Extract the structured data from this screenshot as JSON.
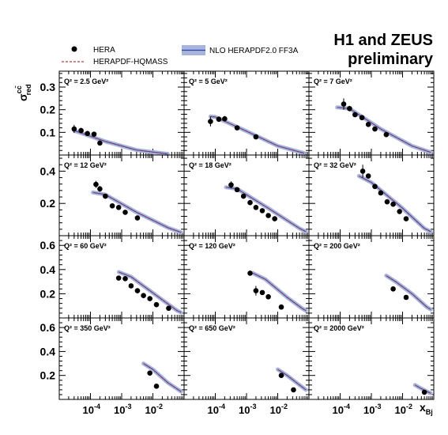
{
  "header": {
    "title_line1": "H1 and ZEUS",
    "title_line2": "preliminary"
  },
  "legend": {
    "data_label": "HERA",
    "theory1_label": "HERAPDF-HQMASS",
    "theory2_label": "NLO HERAPDF2.0 FF3A"
  },
  "axes": {
    "ylabel": "σ",
    "ylabel_sup": "cc̄",
    "ylabel_sub": "red",
    "xlabel": "x",
    "xlabel_sub": "Bj"
  },
  "colors": {
    "data_marker": "#000000",
    "band_fill": "#a7b4dc",
    "band_line": "#3340a8",
    "dashed_line": "#b04040"
  },
  "chart_data": {
    "type": "scatter",
    "x_scale": "log",
    "x_range": [
      1e-05,
      0.1
    ],
    "x_tick_labels": [
      "10^-4",
      "10^-3",
      "10^-2"
    ],
    "rows": [
      {
        "ylim": [
          0,
          0.37
        ],
        "yticks": [
          0.1,
          0.2,
          0.3
        ]
      },
      {
        "ylim": [
          0,
          0.5
        ],
        "yticks": [
          0.2,
          0.4
        ]
      },
      {
        "ylim": [
          0,
          0.68
        ],
        "yticks": [
          0.2,
          0.4,
          0.6
        ]
      },
      {
        "ylim": [
          0,
          0.68
        ],
        "yticks": [
          0.2,
          0.4,
          0.6
        ]
      }
    ],
    "panels": [
      {
        "label": "Q² = 2.5 GeV²",
        "points": [
          [
            3e-05,
            0.115,
            0.018
          ],
          [
            5e-05,
            0.108,
            0.012
          ],
          [
            8e-05,
            0.095,
            0.01
          ],
          [
            0.00013,
            0.092,
            0.01
          ],
          [
            0.0002,
            0.053,
            0.008
          ]
        ],
        "theory": [
          [
            3e-05,
            0.108
          ],
          [
            0.0003,
            0.06
          ],
          [
            0.003,
            0.022
          ],
          [
            0.03,
            0.005
          ]
        ]
      },
      {
        "label": "Q² = 5 GeV²",
        "points": [
          [
            7e-05,
            0.148,
            0.022
          ],
          [
            0.00013,
            0.158,
            0.012
          ],
          [
            0.0002,
            0.16,
            0.012
          ],
          [
            0.0005,
            0.12,
            0.01
          ],
          [
            0.002,
            0.08,
            0.008
          ]
        ],
        "theory": [
          [
            7e-05,
            0.17
          ],
          [
            0.0001,
            0.168
          ],
          [
            0.001,
            0.105
          ],
          [
            0.01,
            0.04
          ],
          [
            0.07,
            0.008
          ]
        ]
      },
      {
        "label": "Q² = 7 GeV²",
        "points": [
          [
            0.00013,
            0.225,
            0.025
          ],
          [
            0.0002,
            0.205,
            0.012
          ],
          [
            0.0003,
            0.178,
            0.01
          ],
          [
            0.0005,
            0.165,
            0.01
          ],
          [
            0.0008,
            0.135,
            0.01
          ],
          [
            0.0013,
            0.115,
            0.008
          ],
          [
            0.003,
            0.09,
            0.008
          ]
        ],
        "theory": [
          [
            8e-05,
            0.21
          ],
          [
            0.0002,
            0.205
          ],
          [
            0.002,
            0.115
          ],
          [
            0.02,
            0.04
          ],
          [
            0.08,
            0.012
          ]
        ]
      },
      {
        "label": "Q² = 12 GeV²",
        "points": [
          [
            0.00015,
            0.318,
            0.022
          ],
          [
            0.0002,
            0.29,
            0.018
          ],
          [
            0.0003,
            0.245,
            0.012
          ],
          [
            0.0005,
            0.185,
            0.01
          ],
          [
            0.0008,
            0.175,
            0.01
          ],
          [
            0.0013,
            0.145,
            0.01
          ],
          [
            0.0032,
            0.11,
            0.008
          ]
        ],
        "theory": [
          [
            0.00012,
            0.268
          ],
          [
            0.0003,
            0.255
          ],
          [
            0.003,
            0.145
          ],
          [
            0.03,
            0.05
          ],
          [
            0.08,
            0.02
          ]
        ]
      },
      {
        "label": "Q² = 18 GeV²",
        "points": [
          [
            0.00032,
            0.315,
            0.022
          ],
          [
            0.0005,
            0.285,
            0.015
          ],
          [
            0.0008,
            0.245,
            0.012
          ],
          [
            0.0013,
            0.205,
            0.01
          ],
          [
            0.002,
            0.175,
            0.01
          ],
          [
            0.0032,
            0.155,
            0.008
          ],
          [
            0.005,
            0.125,
            0.008
          ],
          [
            0.008,
            0.105,
            0.008
          ]
        ],
        "theory": [
          [
            0.00022,
            0.3
          ],
          [
            0.0005,
            0.29
          ],
          [
            0.005,
            0.17
          ],
          [
            0.05,
            0.045
          ],
          [
            0.08,
            0.025
          ]
        ]
      },
      {
        "label": "Q² = 32 GeV²",
        "points": [
          [
            0.00053,
            0.4,
            0.04
          ],
          [
            0.0008,
            0.37,
            0.015
          ],
          [
            0.0013,
            0.305,
            0.015
          ],
          [
            0.002,
            0.265,
            0.012
          ],
          [
            0.0032,
            0.21,
            0.01
          ],
          [
            0.005,
            0.195,
            0.01
          ],
          [
            0.008,
            0.15,
            0.01
          ],
          [
            0.013,
            0.105,
            0.008
          ]
        ],
        "theory": [
          [
            0.0004,
            0.37
          ],
          [
            0.001,
            0.33
          ],
          [
            0.01,
            0.17
          ],
          [
            0.05,
            0.045
          ],
          [
            0.08,
            0.025
          ]
        ]
      },
      {
        "label": "Q² = 60 GeV²",
        "points": [
          [
            0.0008,
            0.33,
            0.015
          ],
          [
            0.0013,
            0.325,
            0.015
          ],
          [
            0.002,
            0.265,
            0.012
          ],
          [
            0.0032,
            0.225,
            0.01
          ],
          [
            0.005,
            0.185,
            0.01
          ],
          [
            0.008,
            0.16,
            0.01
          ],
          [
            0.013,
            0.11,
            0.008
          ],
          [
            0.032,
            0.08,
            0.008
          ]
        ],
        "theory": [
          [
            0.0008,
            0.38
          ],
          [
            0.002,
            0.34
          ],
          [
            0.02,
            0.15
          ],
          [
            0.06,
            0.06
          ],
          [
            0.08,
            0.045
          ]
        ]
      },
      {
        "label": "Q² = 120 GeV²",
        "points": [
          [
            0.0013,
            0.37,
            0.015
          ],
          [
            0.002,
            0.225,
            0.04
          ],
          [
            0.0032,
            0.21,
            0.012
          ],
          [
            0.005,
            0.175,
            0.01
          ],
          [
            0.013,
            0.09,
            0.008
          ]
        ],
        "theory": [
          [
            0.0016,
            0.37
          ],
          [
            0.004,
            0.32
          ],
          [
            0.02,
            0.17
          ],
          [
            0.06,
            0.08
          ],
          [
            0.08,
            0.06
          ]
        ]
      },
      {
        "label": "Q² = 200 GeV²",
        "points": [
          [
            0.005,
            0.24,
            0.015
          ],
          [
            0.013,
            0.17,
            0.012
          ]
        ],
        "theory": [
          [
            0.003,
            0.35
          ],
          [
            0.006,
            0.3
          ],
          [
            0.02,
            0.2
          ],
          [
            0.06,
            0.09
          ],
          [
            0.08,
            0.07
          ]
        ]
      },
      {
        "label": "Q² = 350 GeV²",
        "points": [
          [
            0.008,
            0.22,
            0.015
          ],
          [
            0.013,
            0.11,
            0.012
          ]
        ],
        "theory": [
          [
            0.005,
            0.3
          ],
          [
            0.01,
            0.25
          ],
          [
            0.03,
            0.14
          ],
          [
            0.07,
            0.075
          ],
          [
            0.08,
            0.065
          ]
        ]
      },
      {
        "label": "Q² = 650 GeV²",
        "points": [
          [
            0.013,
            0.2,
            0.015
          ],
          [
            0.032,
            0.08,
            0.01
          ]
        ],
        "theory": [
          [
            0.01,
            0.25
          ],
          [
            0.02,
            0.2
          ],
          [
            0.05,
            0.12
          ],
          [
            0.08,
            0.08
          ]
        ]
      },
      {
        "label": "Q² = 2000 GeV²",
        "points": [
          [
            0.05,
            0.06,
            0.01
          ]
        ],
        "theory": [
          [
            0.025,
            0.12
          ],
          [
            0.04,
            0.09
          ],
          [
            0.08,
            0.05
          ]
        ]
      }
    ]
  }
}
